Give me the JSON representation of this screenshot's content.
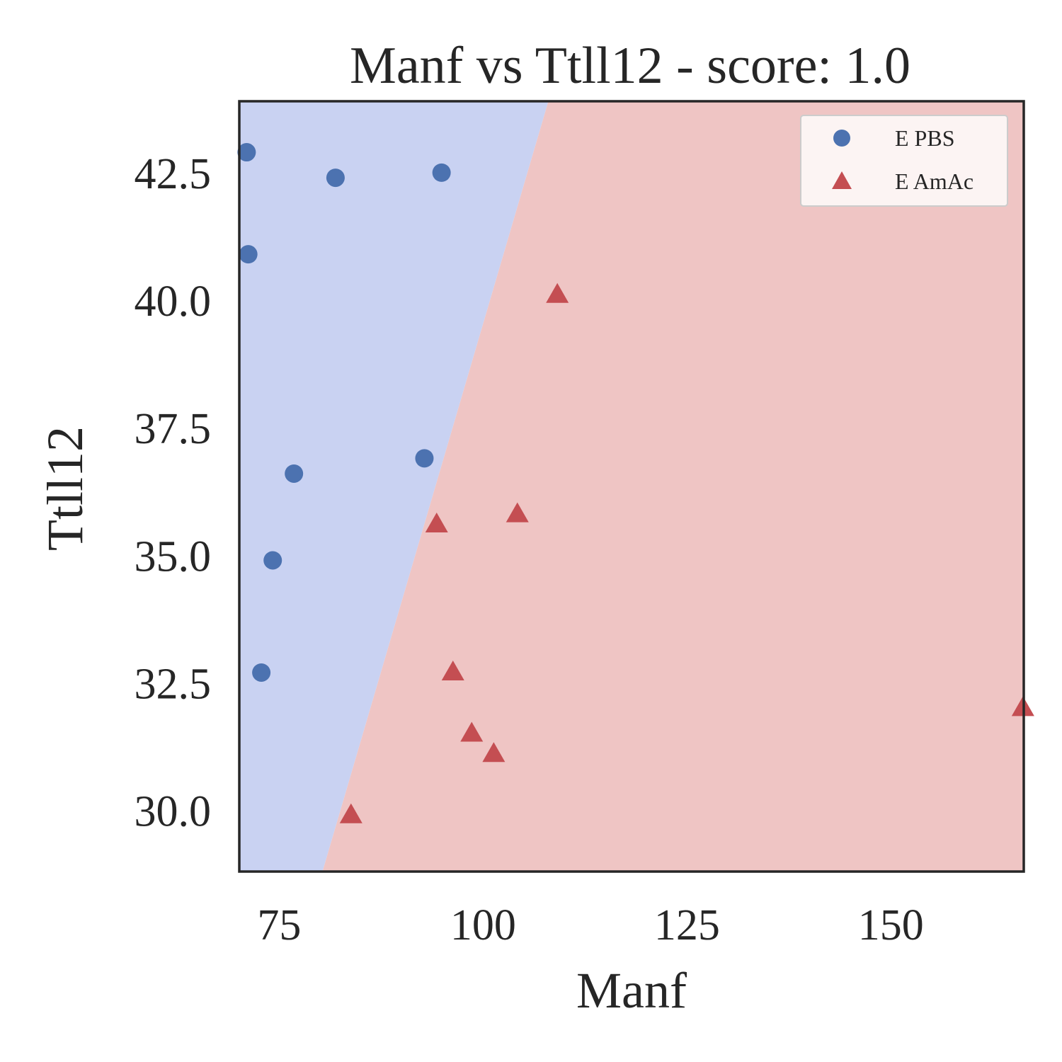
{
  "chart_data": {
    "type": "scatter",
    "title": "Manf vs Ttll12 - score: 1.0",
    "xlabel": "Manf",
    "ylabel": "Ttll12",
    "xlim": [
      70.1,
      166.3
    ],
    "ylim": [
      28.8,
      43.9
    ],
    "xticks": [
      75,
      100,
      125,
      150
    ],
    "yticks": [
      30.0,
      32.5,
      35.0,
      37.5,
      40.0,
      42.5
    ],
    "x_tick_labels": [
      "75",
      "100",
      "125",
      "150"
    ],
    "y_tick_labels": [
      "30.0",
      "32.5",
      "35.0",
      "37.5",
      "40.0",
      "42.5"
    ],
    "grid": false,
    "legend_position": "top-right",
    "decision_boundary": {
      "points": [
        [
          108.0,
          43.9
        ],
        [
          80.3,
          28.8
        ]
      ],
      "left_region_class": "E PBS",
      "right_region_class": "E AmAc"
    },
    "series": [
      {
        "name": "E PBS",
        "marker": "circle",
        "color": "#4c72b0",
        "points": [
          [
            71.0,
            42.9
          ],
          [
            71.2,
            40.9
          ],
          [
            81.9,
            42.4
          ],
          [
            94.9,
            42.5
          ],
          [
            76.8,
            36.6
          ],
          [
            92.8,
            36.9
          ],
          [
            74.2,
            34.9
          ],
          [
            72.8,
            32.7
          ]
        ]
      },
      {
        "name": "E AmAc",
        "marker": "triangle",
        "color": "#c44e52",
        "points": [
          [
            109.1,
            40.1
          ],
          [
            94.3,
            35.6
          ],
          [
            104.2,
            35.8
          ],
          [
            96.3,
            32.7
          ],
          [
            98.6,
            31.5
          ],
          [
            101.3,
            31.1
          ],
          [
            83.8,
            29.9
          ],
          [
            166.2,
            32.0
          ]
        ]
      }
    ],
    "colors": {
      "region_left": "#c9d2f2",
      "region_right": "#efc5c4",
      "axes": "#262626"
    }
  }
}
